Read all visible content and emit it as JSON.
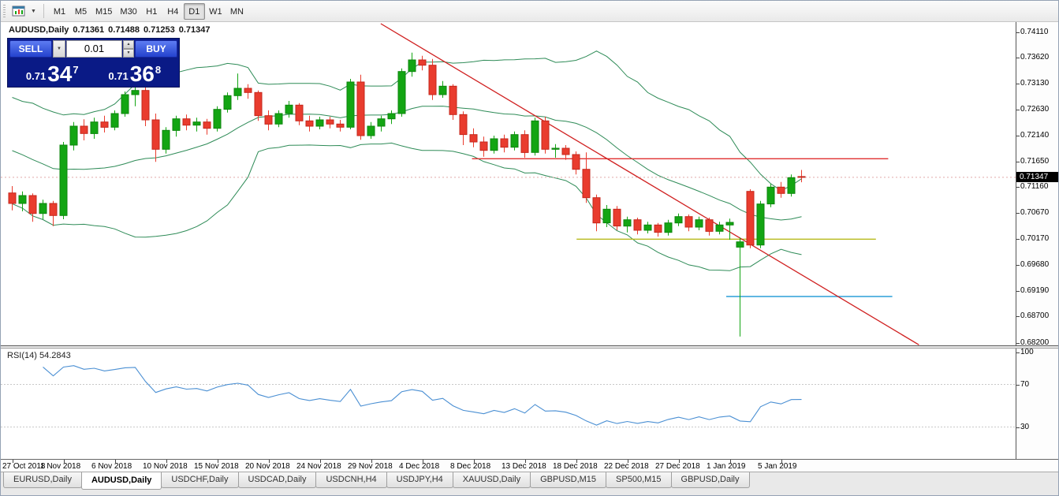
{
  "toolbar": {
    "timeframes": [
      "M1",
      "M5",
      "M15",
      "M30",
      "H1",
      "H4",
      "D1",
      "W1",
      "MN"
    ],
    "active_timeframe": "D1"
  },
  "icons": {
    "dropdown_caret": "▼",
    "spin_up": "▲",
    "spin_down": "▼"
  },
  "chart": {
    "symbol_period": "AUDUSD,Daily",
    "ohlc": {
      "open": "0.71361",
      "high": "0.71488",
      "low": "0.71253",
      "close": "0.71347"
    },
    "current_price": "0.71347",
    "price_scale": [
      "0.74110",
      "0.73620",
      "0.73130",
      "0.72630",
      "0.72140",
      "0.71650",
      "0.71160",
      "0.70670",
      "0.70170",
      "0.69680",
      "0.69190",
      "0.68700",
      "0.68200"
    ],
    "trade_panel": {
      "sell_label": "SELL",
      "buy_label": "BUY",
      "volume": "0.01",
      "sell_price": {
        "prefix": "0.71",
        "big": "34",
        "sup": "7"
      },
      "buy_price": {
        "prefix": "0.71",
        "big": "36",
        "sup": "8"
      }
    }
  },
  "rsi_panel": {
    "label": "RSI(14) 54.2843",
    "scale": [
      "100",
      "70",
      "30"
    ]
  },
  "tabs": {
    "items": [
      "EURUSD,Daily",
      "AUDUSD,Daily",
      "USDCHF,Daily",
      "USDCAD,Daily",
      "USDCNH,H4",
      "USDJPY,H4",
      "XAUUSD,Daily",
      "GBPUSD,M15",
      "SP500,M15",
      "GBPUSD,Daily"
    ],
    "active": "AUDUSD,Daily"
  },
  "chart_data": {
    "type": "candlestick",
    "symbol": "AUDUSD",
    "period": "Daily",
    "title": "AUDUSD,Daily 0.71361 0.71488 0.71253 0.71347",
    "x_labels": [
      "27 Oct 2018",
      "1 Nov 2018",
      "6 Nov 2018",
      "10 Nov 2018",
      "15 Nov 2018",
      "20 Nov 2018",
      "24 Nov 2018",
      "29 Nov 2018",
      "4 Dec 2018",
      "8 Dec 2018",
      "13 Dec 2018",
      "18 Dec 2018",
      "22 Dec 2018",
      "27 Dec 2018",
      "1 Jan 2019",
      "5 Jan 2019"
    ],
    "x_label_step": 5,
    "price_axis": {
      "top": 0.743,
      "bottom": 0.6815
    },
    "ohlc": [
      [
        0.7105,
        0.7118,
        0.7072,
        0.7085
      ],
      [
        0.7085,
        0.7108,
        0.707,
        0.71
      ],
      [
        0.71,
        0.7104,
        0.705,
        0.7066
      ],
      [
        0.7066,
        0.7092,
        0.7055,
        0.7085
      ],
      [
        0.7085,
        0.709,
        0.7042,
        0.7062
      ],
      [
        0.7062,
        0.7202,
        0.7055,
        0.7196
      ],
      [
        0.7196,
        0.724,
        0.7186,
        0.7232
      ],
      [
        0.7232,
        0.7245,
        0.7205,
        0.7218
      ],
      [
        0.7218,
        0.7248,
        0.7208,
        0.724
      ],
      [
        0.724,
        0.7252,
        0.722,
        0.723
      ],
      [
        0.723,
        0.7262,
        0.7224,
        0.7256
      ],
      [
        0.7256,
        0.7298,
        0.725,
        0.7292
      ],
      [
        0.7292,
        0.7312,
        0.727,
        0.73
      ],
      [
        0.73,
        0.7308,
        0.7232,
        0.7244
      ],
      [
        0.7244,
        0.7256,
        0.7164,
        0.7188
      ],
      [
        0.7188,
        0.723,
        0.718,
        0.7224
      ],
      [
        0.7224,
        0.7252,
        0.7212,
        0.7246
      ],
      [
        0.7246,
        0.7254,
        0.7224,
        0.7234
      ],
      [
        0.7234,
        0.7248,
        0.7222,
        0.724
      ],
      [
        0.724,
        0.7246,
        0.7216,
        0.7228
      ],
      [
        0.7228,
        0.727,
        0.7222,
        0.7264
      ],
      [
        0.7264,
        0.7296,
        0.7258,
        0.729
      ],
      [
        0.729,
        0.7332,
        0.7282,
        0.7304
      ],
      [
        0.7304,
        0.7312,
        0.7284,
        0.7296
      ],
      [
        0.7296,
        0.73,
        0.7242,
        0.7252
      ],
      [
        0.7252,
        0.7262,
        0.7224,
        0.7236
      ],
      [
        0.7236,
        0.7262,
        0.723,
        0.7256
      ],
      [
        0.7256,
        0.728,
        0.7248,
        0.7272
      ],
      [
        0.7272,
        0.7276,
        0.7234,
        0.7242
      ],
      [
        0.7242,
        0.7252,
        0.7222,
        0.7232
      ],
      [
        0.7232,
        0.725,
        0.7226,
        0.7244
      ],
      [
        0.7244,
        0.725,
        0.7228,
        0.7236
      ],
      [
        0.7236,
        0.7244,
        0.7222,
        0.723
      ],
      [
        0.723,
        0.7322,
        0.7226,
        0.7316
      ],
      [
        0.7316,
        0.733,
        0.7206,
        0.7214
      ],
      [
        0.7214,
        0.724,
        0.7208,
        0.7232
      ],
      [
        0.7232,
        0.7252,
        0.7222,
        0.7246
      ],
      [
        0.7246,
        0.7262,
        0.7236,
        0.7256
      ],
      [
        0.7256,
        0.7342,
        0.725,
        0.7336
      ],
      [
        0.7336,
        0.7372,
        0.7326,
        0.7358
      ],
      [
        0.7358,
        0.7366,
        0.7338,
        0.7348
      ],
      [
        0.7348,
        0.736,
        0.7282,
        0.7292
      ],
      [
        0.7292,
        0.7318,
        0.7286,
        0.7308
      ],
      [
        0.7308,
        0.7312,
        0.7244,
        0.7254
      ],
      [
        0.7254,
        0.726,
        0.7196,
        0.7216
      ],
      [
        0.7216,
        0.7228,
        0.7192,
        0.7202
      ],
      [
        0.7202,
        0.7212,
        0.7174,
        0.7186
      ],
      [
        0.7186,
        0.7214,
        0.718,
        0.7208
      ],
      [
        0.7208,
        0.7216,
        0.7182,
        0.7192
      ],
      [
        0.7192,
        0.7222,
        0.7186,
        0.7216
      ],
      [
        0.7216,
        0.7224,
        0.7172,
        0.7182
      ],
      [
        0.7182,
        0.7248,
        0.7176,
        0.7242
      ],
      [
        0.7242,
        0.725,
        0.718,
        0.7188
      ],
      [
        0.7188,
        0.7198,
        0.7172,
        0.719
      ],
      [
        0.719,
        0.7196,
        0.7168,
        0.7178
      ],
      [
        0.7178,
        0.7184,
        0.714,
        0.715
      ],
      [
        0.715,
        0.7182,
        0.7086,
        0.7096
      ],
      [
        0.7096,
        0.7102,
        0.7032,
        0.7048
      ],
      [
        0.7048,
        0.7082,
        0.704,
        0.7074
      ],
      [
        0.7074,
        0.708,
        0.7034,
        0.7042
      ],
      [
        0.7042,
        0.706,
        0.703,
        0.7054
      ],
      [
        0.7054,
        0.7058,
        0.7026,
        0.7034
      ],
      [
        0.7034,
        0.705,
        0.7028,
        0.7044
      ],
      [
        0.7044,
        0.7048,
        0.7022,
        0.703
      ],
      [
        0.703,
        0.7054,
        0.7024,
        0.7048
      ],
      [
        0.7048,
        0.7066,
        0.7042,
        0.706
      ],
      [
        0.706,
        0.7064,
        0.7032,
        0.704
      ],
      [
        0.704,
        0.706,
        0.7034,
        0.7054
      ],
      [
        0.7054,
        0.7058,
        0.7024,
        0.7032
      ],
      [
        0.7032,
        0.705,
        0.7026,
        0.7044
      ],
      [
        0.7044,
        0.7056,
        0.7016,
        0.7049
      ],
      [
        0.7002,
        0.702,
        0.6832,
        0.7012
      ],
      [
        0.7108,
        0.7112,
        0.7,
        0.7006
      ],
      [
        0.7006,
        0.709,
        0.7,
        0.7084
      ],
      [
        0.7084,
        0.7122,
        0.7078,
        0.7116
      ],
      [
        0.7116,
        0.7126,
        0.7096,
        0.7104
      ],
      [
        0.7104,
        0.714,
        0.7098,
        0.7134
      ],
      [
        0.71361,
        0.71488,
        0.71253,
        0.71347
      ]
    ],
    "indicators": {
      "bollinger_bands": {
        "period": 20,
        "deviation": 2,
        "color": "#2e8b57",
        "seed_closes": [
          0.726,
          0.7248,
          0.7252,
          0.7238,
          0.723,
          0.722,
          0.7226,
          0.7212,
          0.7205,
          0.7196,
          0.7188,
          0.7178,
          0.717,
          0.716,
          0.715,
          0.714,
          0.713,
          0.7118,
          0.7105
        ]
      },
      "rsi": {
        "period": 14,
        "current": 54.2843,
        "levels": [
          30,
          70
        ],
        "color": "#4a8fd3"
      }
    },
    "objects": {
      "trendline": {
        "name": "descending-trendline",
        "color": "#d02020",
        "i1": 36.3,
        "p1": 0.7427,
        "i2": 88.8,
        "p2": 0.6816
      },
      "hlines": [
        {
          "name": "resistance-hline-red",
          "price": 0.717,
          "color": "#e03030",
          "i1": 45.2,
          "i2": 85.8
        },
        {
          "name": "support-hline-yellow",
          "price": 0.7017,
          "color": "#b8ba1e",
          "i1": 55.4,
          "i2": 84.6
        },
        {
          "name": "support-hline-blue",
          "price": 0.6908,
          "color": "#2b9fd8",
          "i1": 70.0,
          "i2": 86.2
        }
      ]
    },
    "colors": {
      "up": "#13a513",
      "up_stroke": "#0d850d",
      "down": "#e93c2e",
      "down_stroke": "#c4271c",
      "bid_line": "#e0a8a8",
      "background": "#ffffff"
    }
  }
}
